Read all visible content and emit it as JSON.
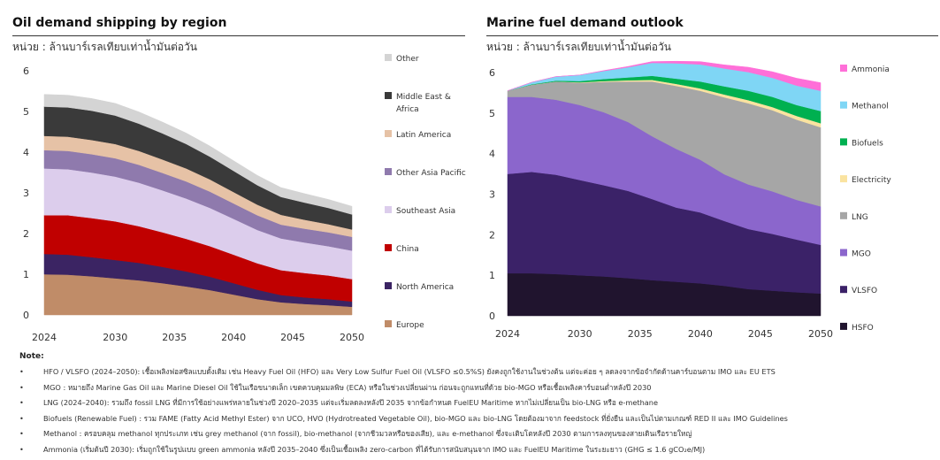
{
  "left_panel": {
    "title": "Oil demand shipping by region",
    "unit": "หน่วย : ล้านบาร์เรลเทียบเท่าน้ำมันต่อวัน"
  },
  "right_panel": {
    "title": "Marine fuel demand outlook",
    "unit": "หน่วย : ล้านบาร์เรลเทียบเท่าน้ำมันต่อวัน"
  },
  "notes": {
    "title": "Note:",
    "bullet": "•",
    "items": [
      "HFO / VLSFO (2024–2050): เชื้อเพลิงฟอสซิลแบบดั้งเดิม เช่น Heavy Fuel Oil (HFO) และ Very Low Sulfur Fuel Oil (VLSFO ≤0.5%S) ยังคงถูกใช้งานในช่วงต้น แต่จะค่อย ๆ ลดลงจากข้อจำกัดด้านคาร์บอนตาม IMO และ EU ETS",
      "MGO : หมายถึง Marine Gas Oil และ Marine Diesel Oil ใช้ในเรือขนาดเล็ก เขตควบคุมมลพิษ (ECA) หรือในช่วงเปลี่ยนผ่าน ก่อนจะถูกแทนที่ด้วย bio-MGO หรือเชื้อเพลิงคาร์บอนต่ำหลังปี 2030",
      "LNG (2024–2040): รวมถึง fossil LNG ที่มีการใช้อย่างแพร่หลายในช่วงปี 2020–2035 แต่จะเริ่มลดลงหลังปี 2035 จากข้อกำหนด FuelEU Maritime หากไม่เปลี่ยนเป็น bio-LNG หรือ e-methane",
      "Biofuels (Renewable Fuel) : รวม FAME (Fatty Acid Methyl Ester) จาก UCO, HVO (Hydrotreated Vegetable Oil), bio-MGO และ bio-LNG โดยต้องมาจาก feedstock ที่ยั่งยืน และเป็นไปตามเกณฑ์ RED II และ IMO Guidelines",
      "Methanol : ครอบคลุม methanol ทุกประเภท เช่น grey methanol (จาก fossil), bio-methanol (จากชีวมวลหรือของเสีย), และ e-methanol ซึ่งจะเติบโตหลังปี 2030 ตามการลงทุนของสายเดินเรือรายใหญ่",
      "Ammonia (เริ่มต้นปี 2030): เริ่มถูกใช้ในรูปแบบ green ammonia หลังปี 2035–2040 ซึ่งเป็นเชื้อเพลิง zero-carbon ที่ได้รับการสนับสนุนจาก IMO และ FuelEU Maritime ในระยะยาว (GHG ≤ 1.6 gCO₂e/MJ)"
    ]
  },
  "chart_data": [
    {
      "type": "area",
      "title": "Oil demand shipping by region",
      "subtitle": "หน่วย : ล้านบาร์เรลเทียบเท่าน้ำมันต่อวัน",
      "x": [
        2024,
        2026,
        2028,
        2030,
        2032,
        2034,
        2036,
        2038,
        2040,
        2042,
        2044,
        2046,
        2048,
        2050
      ],
      "x_ticks": [
        2024,
        2030,
        2035,
        2040,
        2045,
        2050
      ],
      "y_ticks": [
        0,
        1,
        2,
        3,
        4,
        5,
        6
      ],
      "ylim": [
        0,
        6
      ],
      "grid": false,
      "legend_position": "right",
      "series": [
        {
          "name": "Europe",
          "color": "#c08c68",
          "values": [
            1.0,
            0.99,
            0.95,
            0.9,
            0.85,
            0.78,
            0.7,
            0.61,
            0.5,
            0.39,
            0.31,
            0.27,
            0.24,
            0.2
          ]
        },
        {
          "name": "North America",
          "color": "#3b2463",
          "values": [
            0.5,
            0.49,
            0.47,
            0.45,
            0.43,
            0.4,
            0.37,
            0.33,
            0.28,
            0.23,
            0.18,
            0.16,
            0.15,
            0.13
          ]
        },
        {
          "name": "China",
          "color": "#c00000",
          "values": [
            0.95,
            0.97,
            0.96,
            0.95,
            0.9,
            0.85,
            0.8,
            0.75,
            0.7,
            0.65,
            0.61,
            0.6,
            0.58,
            0.55
          ]
        },
        {
          "name": "Southeast Asia",
          "color": "#dccdec",
          "values": [
            1.15,
            1.13,
            1.12,
            1.1,
            1.07,
            1.03,
            0.99,
            0.94,
            0.88,
            0.82,
            0.78,
            0.75,
            0.72,
            0.7
          ]
        },
        {
          "name": "Other Asia Pacific",
          "color": "#8f7aad",
          "values": [
            0.45,
            0.45,
            0.45,
            0.45,
            0.44,
            0.43,
            0.42,
            0.4,
            0.38,
            0.36,
            0.34,
            0.34,
            0.34,
            0.34
          ]
        },
        {
          "name": "Latin America",
          "color": "#e6c2a6",
          "values": [
            0.35,
            0.35,
            0.35,
            0.35,
            0.34,
            0.33,
            0.32,
            0.3,
            0.28,
            0.26,
            0.24,
            0.22,
            0.2,
            0.18
          ]
        },
        {
          "name": "Middle East & Africa",
          "color": "#3a3a3a",
          "values": [
            0.72,
            0.72,
            0.72,
            0.7,
            0.67,
            0.64,
            0.6,
            0.56,
            0.52,
            0.48,
            0.44,
            0.42,
            0.4,
            0.37
          ]
        },
        {
          "name": "Other",
          "color": "#d4d4d4",
          "values": [
            0.3,
            0.3,
            0.3,
            0.3,
            0.29,
            0.28,
            0.27,
            0.26,
            0.25,
            0.24,
            0.23,
            0.22,
            0.21,
            0.2
          ]
        }
      ]
    },
    {
      "type": "area",
      "title": "Marine fuel demand outlook",
      "subtitle": "หน่วย : ล้านบาร์เรลเทียบเท่าน้ำมันต่อวัน",
      "x": [
        2024,
        2026,
        2028,
        2030,
        2032,
        2034,
        2036,
        2038,
        2040,
        2042,
        2044,
        2046,
        2048,
        2050
      ],
      "x_ticks": [
        2024,
        2030,
        2035,
        2040,
        2045,
        2050
      ],
      "y_ticks": [
        0,
        1,
        2,
        3,
        4,
        5,
        6
      ],
      "ylim": [
        0,
        6
      ],
      "grid": false,
      "legend_position": "right",
      "series": [
        {
          "name": "HSFO",
          "color": "#20142e",
          "values": [
            1.05,
            1.05,
            1.03,
            1.0,
            0.97,
            0.93,
            0.88,
            0.84,
            0.8,
            0.74,
            0.66,
            0.62,
            0.58,
            0.55
          ]
        },
        {
          "name": "VLSFO",
          "color": "#3b2268",
          "values": [
            2.45,
            2.5,
            2.45,
            2.35,
            2.25,
            2.15,
            2.0,
            1.83,
            1.75,
            1.6,
            1.48,
            1.4,
            1.3,
            1.2
          ]
        },
        {
          "name": "MGO",
          "color": "#8b66cc",
          "values": [
            1.9,
            1.85,
            1.85,
            1.85,
            1.8,
            1.7,
            1.55,
            1.45,
            1.3,
            1.15,
            1.1,
            1.05,
            0.98,
            0.95
          ]
        },
        {
          "name": "LNG",
          "color": "#a6a6a6",
          "values": [
            0.15,
            0.3,
            0.45,
            0.55,
            0.75,
            1.0,
            1.35,
            1.55,
            1.7,
            1.9,
            2.0,
            2.0,
            1.98,
            1.95
          ]
        },
        {
          "name": "Electricity",
          "color": "#fae3a0",
          "values": [
            0.0,
            0.0,
            0.0,
            0.01,
            0.02,
            0.03,
            0.04,
            0.05,
            0.06,
            0.07,
            0.08,
            0.08,
            0.09,
            0.1
          ]
        },
        {
          "name": "Biofuels",
          "color": "#00b050",
          "values": [
            0.0,
            0.01,
            0.02,
            0.03,
            0.05,
            0.07,
            0.1,
            0.13,
            0.17,
            0.2,
            0.23,
            0.25,
            0.27,
            0.3
          ]
        },
        {
          "name": "Methanol",
          "color": "#7fd6f5",
          "values": [
            0.0,
            0.05,
            0.1,
            0.15,
            0.2,
            0.25,
            0.32,
            0.38,
            0.42,
            0.44,
            0.46,
            0.47,
            0.48,
            0.5
          ]
        },
        {
          "name": "Ammonia",
          "color": "#ff6fd8",
          "values": [
            0.0,
            0.0,
            0.0,
            0.0,
            0.01,
            0.02,
            0.03,
            0.05,
            0.07,
            0.09,
            0.12,
            0.15,
            0.18,
            0.2
          ]
        }
      ]
    }
  ]
}
